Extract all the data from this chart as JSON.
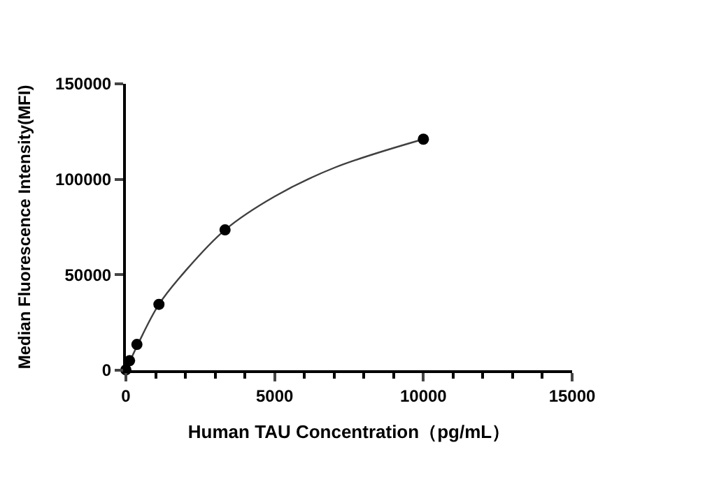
{
  "chart_data": {
    "type": "scatter",
    "xlabel": "Human TAU Concentration（pg/mL）",
    "ylabel": "Median Fluorescence Intensity(MFI)",
    "xlim": [
      0,
      15000
    ],
    "ylim": [
      0,
      150000
    ],
    "xticks": [
      0,
      5000,
      10000,
      15000
    ],
    "yticks": [
      0,
      50000,
      100000,
      150000
    ],
    "series": [
      {
        "type": "line",
        "color": "#404040",
        "x": [
          0,
          100,
          400,
          1111,
          2000,
          3333,
          5000,
          7000,
          10000
        ],
        "values": [
          200,
          3500,
          13500,
          34500,
          52000,
          73500,
          91000,
          106000,
          121000
        ]
      },
      {
        "color": "#000000",
        "marker": "circle",
        "x": [
          0,
          123,
          370,
          1111,
          3333,
          10000
        ],
        "values": [
          200,
          5000,
          13500,
          34500,
          73500,
          121000
        ]
      }
    ]
  }
}
